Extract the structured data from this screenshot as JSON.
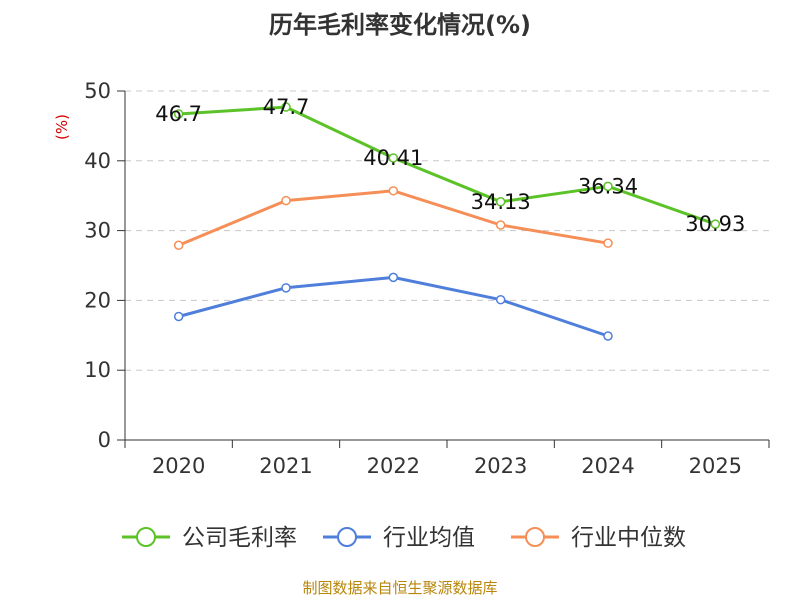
{
  "chart_data": {
    "type": "line",
    "title": "历年毛利率变化情况(%)",
    "ylabel": "(%)",
    "xlabel": "",
    "ylim": [
      0,
      50
    ],
    "yticks": [
      0,
      10,
      20,
      30,
      40,
      50
    ],
    "grid": true,
    "legend_position": "bottom",
    "categories": [
      "2020",
      "2021",
      "2022",
      "2023",
      "2024",
      "2025"
    ],
    "series": [
      {
        "name": "公司毛利率",
        "color": "#5bc227",
        "values": [
          46.7,
          47.7,
          40.41,
          34.13,
          36.34,
          30.93
        ],
        "labels": [
          "46.7",
          "47.7",
          "40.41",
          "34.13",
          "36.34",
          "30.93"
        ]
      },
      {
        "name": "行业均值",
        "color": "#4f7fdb",
        "values": [
          17.7,
          21.8,
          23.3,
          20.1,
          14.9,
          null
        ]
      },
      {
        "name": "行业中位数",
        "color": "#f58e57",
        "values": [
          27.9,
          34.3,
          35.7,
          30.8,
          28.2,
          null
        ]
      }
    ]
  },
  "source": "制图数据来自恒生聚源数据库"
}
